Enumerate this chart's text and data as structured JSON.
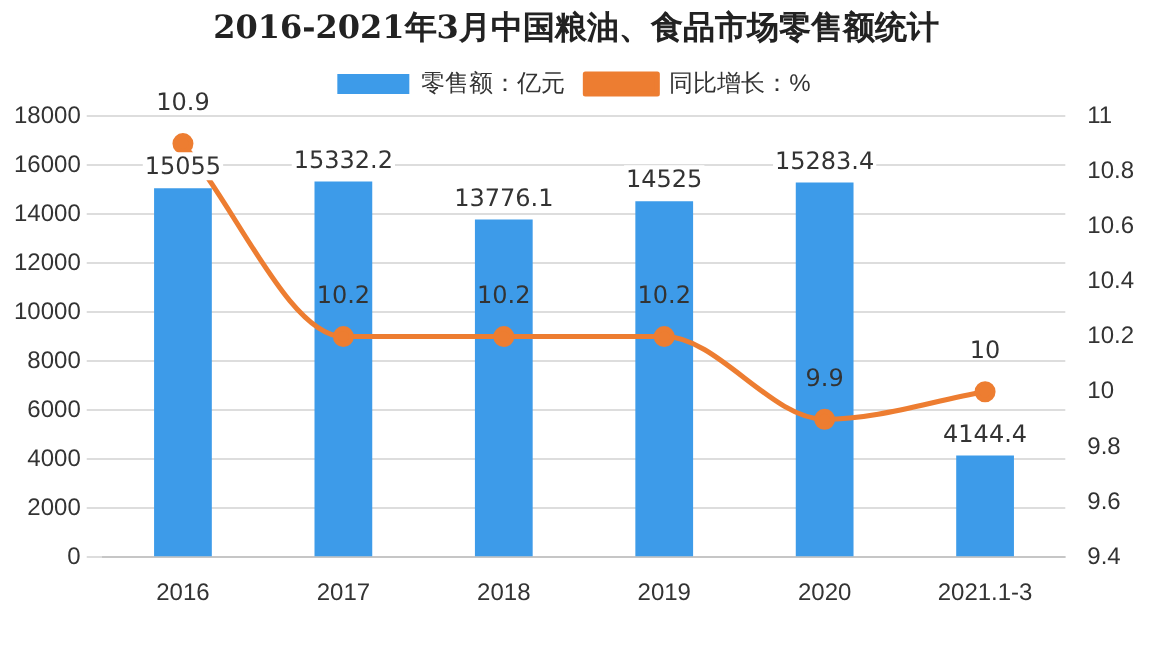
{
  "chart_data": {
    "type": "bar",
    "title": "2016-2021年3月中国粮油、食品市场零售额统计",
    "categories": [
      "2016",
      "2017",
      "2018",
      "2019",
      "2020",
      "2021.1-3"
    ],
    "series": [
      {
        "name": "零售额：亿元",
        "color": "#3d9be9",
        "values": [
          15055,
          15332.2,
          13776.1,
          14525,
          15283.4,
          4144.4
        ]
      },
      {
        "name": "同比增长：%",
        "type": "line",
        "axis": "y2",
        "color": "#ed7d31",
        "values": [
          10.9,
          10.2,
          10.2,
          10.2,
          9.9,
          10
        ]
      }
    ],
    "ylim": [
      0,
      18000
    ],
    "yticks": [
      0,
      2000,
      4000,
      6000,
      8000,
      10000,
      12000,
      14000,
      16000,
      18000
    ],
    "y2lim": [
      9.4,
      11
    ],
    "y2ticks": [
      9.4,
      9.6,
      9.8,
      10,
      10.2,
      10.4,
      10.6,
      10.8,
      11
    ],
    "data_labels": true,
    "grid": "y",
    "legend": "top",
    "marker": "circle"
  }
}
